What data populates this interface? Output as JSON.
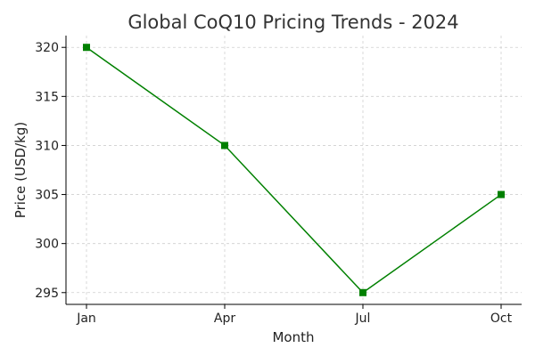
{
  "chart_data": {
    "type": "line",
    "title": "Global CoQ10 Pricing Trends - 2024",
    "xlabel": "Month",
    "ylabel": "Price (USD/kg)",
    "categories": [
      "Jan",
      "Apr",
      "Jul",
      "Oct"
    ],
    "series": [
      {
        "values": [
          320,
          310,
          295,
          305
        ],
        "color": "#008000",
        "marker": "square"
      }
    ],
    "ylim": [
      293.8,
      321.2
    ],
    "yticks": [
      295,
      300,
      305,
      310,
      315,
      320
    ],
    "grid": true,
    "legend": "none"
  }
}
